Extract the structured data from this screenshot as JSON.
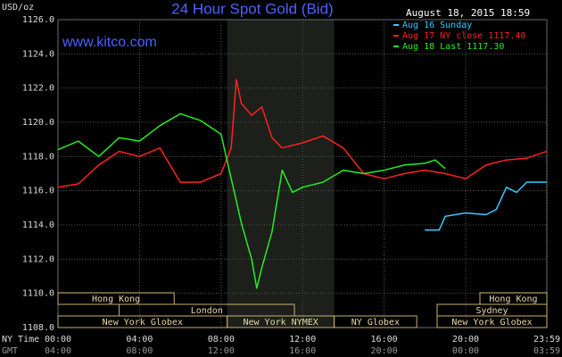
{
  "chart_data": {
    "type": "line",
    "title": "24 Hour Spot Gold (Bid)",
    "ylabel": "USD/oz",
    "date": "August 18, 2015 18:59",
    "site": "www.kitco.com",
    "xlabel": "NY Time",
    "x2label": "GMT",
    "xlim": [
      0,
      23.983
    ],
    "ylim": [
      1108,
      1126
    ],
    "xticks": [
      {
        "value": 0,
        "label": "00:00"
      },
      {
        "value": 4,
        "label": "04:00"
      },
      {
        "value": 8,
        "label": "08:00"
      },
      {
        "value": 12,
        "label": "12:00"
      },
      {
        "value": 16,
        "label": "16:00"
      },
      {
        "value": 20,
        "label": "20:00"
      },
      {
        "value": 23.983,
        "label": "23:59"
      }
    ],
    "x2ticks": [
      {
        "value": 0,
        "label": "04:00"
      },
      {
        "value": 4,
        "label": "08:00"
      },
      {
        "value": 8,
        "label": "12:00"
      },
      {
        "value": 12,
        "label": "16:00"
      },
      {
        "value": 16,
        "label": "20:00"
      },
      {
        "value": 20,
        "label": "00:00"
      },
      {
        "value": 23.983,
        "label": "03:59"
      }
    ],
    "yticks": [
      {
        "value": 1108,
        "label": "1108.0"
      },
      {
        "value": 1110,
        "label": "1110.0"
      },
      {
        "value": 1112,
        "label": "1112.0"
      },
      {
        "value": 1114,
        "label": "1114.0"
      },
      {
        "value": 1116,
        "label": "1116.0"
      },
      {
        "value": 1118,
        "label": "1118.0"
      },
      {
        "value": 1120,
        "label": "1120.0"
      },
      {
        "value": 1122,
        "label": "1122.0"
      },
      {
        "value": 1124,
        "label": "1124.0"
      },
      {
        "value": 1126,
        "label": "1126.0"
      }
    ],
    "grid": true,
    "series": [
      {
        "name": "Aug 16 Sunday",
        "color": "#33ccff",
        "x": [
          18,
          18.7,
          19,
          20,
          21,
          21.5,
          22,
          22.5,
          23,
          23.983
        ],
        "values": [
          1113.7,
          1113.7,
          1114.5,
          1114.7,
          1114.6,
          1114.9,
          1116.2,
          1115.9,
          1116.5,
          1116.5
        ]
      },
      {
        "name": "Aug 17 NY close 1117.40",
        "color": "#ff2020",
        "x": [
          0,
          1,
          2,
          3,
          4,
          5,
          6,
          7,
          8,
          8.5,
          8.75,
          9,
          9.5,
          10,
          10.5,
          11,
          12,
          13,
          14,
          15,
          16,
          17,
          18,
          19,
          20,
          21,
          22,
          23,
          23.983
        ],
        "values": [
          1116.2,
          1116.4,
          1117.5,
          1118.3,
          1118.0,
          1118.5,
          1116.5,
          1116.5,
          1117.0,
          1118.5,
          1122.5,
          1121.1,
          1120.4,
          1120.9,
          1119.1,
          1118.5,
          1118.8,
          1119.2,
          1118.5,
          1117.0,
          1116.7,
          1117.0,
          1117.2,
          1117.0,
          1116.7,
          1117.5,
          1117.8,
          1117.9,
          1118.3
        ]
      },
      {
        "name": "Aug 18 Last 1117.30",
        "color": "#22ee22",
        "x": [
          0,
          1,
          2,
          3,
          4,
          5,
          6,
          7,
          8,
          8.5,
          9,
          9.5,
          9.75,
          10,
          10.5,
          11,
          11.5,
          12,
          13,
          14,
          15,
          16,
          17,
          18,
          18.5,
          19
        ],
        "values": [
          1118.4,
          1118.9,
          1118.0,
          1119.1,
          1118.9,
          1119.8,
          1120.5,
          1120.1,
          1119.3,
          1116.7,
          1114.1,
          1112.0,
          1110.3,
          1111.5,
          1113.6,
          1117.2,
          1115.9,
          1116.2,
          1116.5,
          1117.2,
          1117.0,
          1117.2,
          1117.5,
          1117.6,
          1117.8,
          1117.3
        ]
      }
    ],
    "sessions": [
      [
        {
          "label": "Hong Kong",
          "start": 0,
          "end": 5.7
        },
        {
          "label": "Hong Kong",
          "start": 20.7,
          "end": 23.983
        }
      ],
      [
        {
          "label": "London",
          "start": 3,
          "end": 11.6
        },
        {
          "label": "Sydney",
          "start": 18.6,
          "end": 23.983
        }
      ],
      [
        {
          "label": "New York Globex",
          "start": 0,
          "end": 8.3
        },
        {
          "label": "New York NYMEX",
          "start": 8.3,
          "end": 13.55
        },
        {
          "label": "NY Globex",
          "start": 13.55,
          "end": 17.6
        },
        {
          "label": "New York Globex",
          "start": 18.6,
          "end": 23.983
        }
      ]
    ]
  }
}
